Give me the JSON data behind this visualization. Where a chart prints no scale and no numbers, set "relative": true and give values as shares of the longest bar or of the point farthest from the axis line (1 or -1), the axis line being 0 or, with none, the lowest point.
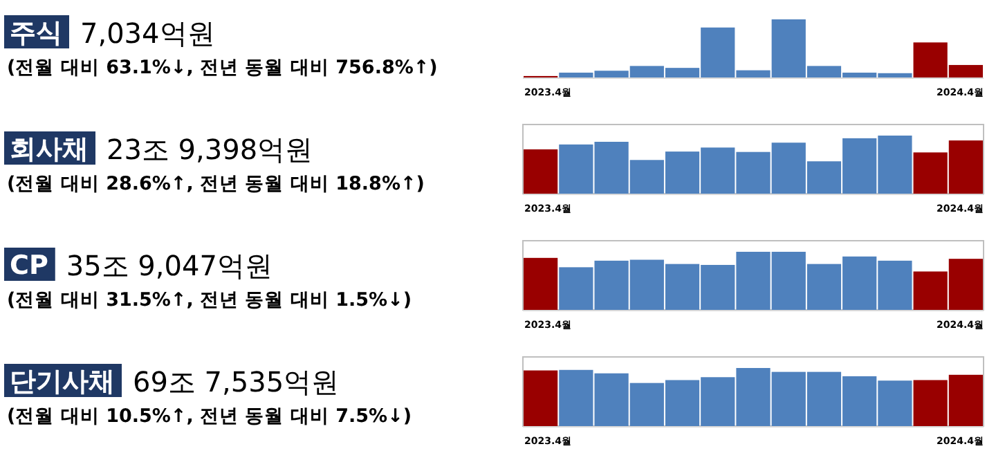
{
  "chart_data": [
    {
      "type": "bar",
      "relative": true,
      "annotations": [
        "주식",
        "7,034억원"
      ],
      "subtitle": "(전월 대비 63.1%↓, 전년 동월 대비 756.8%↑)",
      "categories": [
        "2023.4월",
        null,
        null,
        null,
        null,
        null,
        null,
        null,
        null,
        null,
        null,
        null,
        "2024.4월"
      ],
      "values": [
        0.025,
        0.083,
        0.116,
        0.198,
        0.165,
        0.86,
        0.124,
        1,
        0.198,
        0.083,
        0.074,
        0.603,
        0.215
      ],
      "colors": [
        "#990000",
        "#4f81bd",
        "#4f81bd",
        "#4f81bd",
        "#4f81bd",
        "#4f81bd",
        "#4f81bd",
        "#4f81bd",
        "#4f81bd",
        "#4f81bd",
        "#4f81bd",
        "#990000",
        "#990000"
      ]
    },
    {
      "type": "bar",
      "relative": true,
      "annotations": [
        "회사채",
        "23조 9,398억원"
      ],
      "subtitle": "(전월 대비 28.6%↑, 전년 동월 대비 18.8%↑)",
      "categories": [
        "2023.4월",
        null,
        null,
        null,
        null,
        null,
        null,
        null,
        null,
        null,
        null,
        null,
        "2024.4월"
      ],
      "values": [
        0.763,
        0.847,
        0.893,
        0.58,
        0.725,
        0.794,
        0.718,
        0.878,
        0.557,
        0.954,
        1,
        0.71,
        0.916
      ],
      "colors": [
        "#990000",
        "#4f81bd",
        "#4f81bd",
        "#4f81bd",
        "#4f81bd",
        "#4f81bd",
        "#4f81bd",
        "#4f81bd",
        "#4f81bd",
        "#4f81bd",
        "#4f81bd",
        "#990000",
        "#990000"
      ]
    },
    {
      "type": "bar",
      "relative": true,
      "annotations": [
        "CP",
        "35조 9,047억원"
      ],
      "subtitle": "(전월 대비 31.5%↑, 전년 동월 대비 1.5%↓)",
      "categories": [
        "2023.4월",
        null,
        null,
        null,
        null,
        null,
        null,
        null,
        null,
        null,
        null,
        null,
        "2024.4월"
      ],
      "values": [
        0.895,
        0.734,
        0.847,
        0.863,
        0.79,
        0.774,
        1,
        1,
        0.79,
        0.919,
        0.847,
        0.661,
        0.879
      ],
      "colors": [
        "#990000",
        "#4f81bd",
        "#4f81bd",
        "#4f81bd",
        "#4f81bd",
        "#4f81bd",
        "#4f81bd",
        "#4f81bd",
        "#4f81bd",
        "#4f81bd",
        "#4f81bd",
        "#990000",
        "#990000"
      ]
    },
    {
      "type": "bar",
      "relative": true,
      "annotations": [
        "단기사채",
        "69조 7,535억원"
      ],
      "subtitle": "(전월 대비 10.5%↑, 전년 동월 대비 7.5%↓)",
      "categories": [
        "2023.4월",
        null,
        null,
        null,
        null,
        null,
        null,
        null,
        null,
        null,
        null,
        null,
        "2024.4월"
      ],
      "values": [
        0.958,
        0.967,
        0.908,
        0.742,
        0.792,
        0.842,
        1,
        0.933,
        0.933,
        0.858,
        0.783,
        0.792,
        0.883
      ],
      "colors": [
        "#990000",
        "#4f81bd",
        "#4f81bd",
        "#4f81bd",
        "#4f81bd",
        "#4f81bd",
        "#4f81bd",
        "#4f81bd",
        "#4f81bd",
        "#4f81bd",
        "#4f81bd",
        "#990000",
        "#990000"
      ]
    }
  ]
}
